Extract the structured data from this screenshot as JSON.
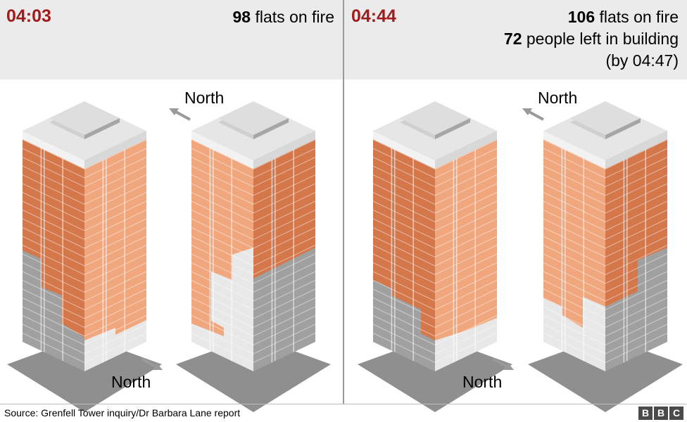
{
  "panels": [
    {
      "time": "04:03",
      "stats": [
        {
          "num": "98",
          "text": " flats on fire"
        }
      ],
      "north_upper": "North",
      "north_lower": "North"
    },
    {
      "time": "04:44",
      "stats": [
        {
          "num": "106",
          "text": " flats on fire"
        },
        {
          "num": "72",
          "text": " people left in building"
        },
        {
          "num": "",
          "text": "(by 04:47)"
        }
      ],
      "north_upper": "North",
      "north_lower": "North"
    }
  ],
  "footer": {
    "source": "Source: Grenfell Tower inquiry/Dr Barbara Lane report",
    "logo_letters": [
      "B",
      "B",
      "C"
    ]
  },
  "colors": {
    "fire_light": "#f0a77e",
    "fire_dark": "#d4774b",
    "grey_light": "#e8e8e8",
    "grey_dark": "#a0a0a0",
    "time_red": "#a01c1c"
  }
}
